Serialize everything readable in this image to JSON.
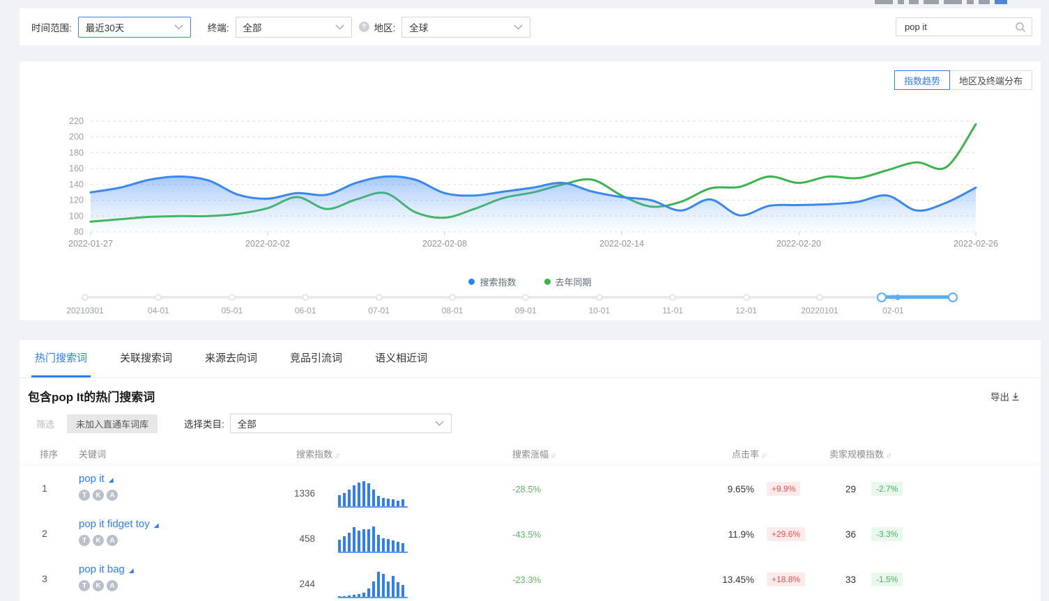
{
  "colors": {
    "accent_blue": "#2d7cf7",
    "chart_blue": "#3a87f0",
    "chart_green": "#3ab54a",
    "slider_blue": "#57aef8",
    "up_red": "#f0504e",
    "down_green": "#4bb25c"
  },
  "icons": {
    "sort_icon": "↓↑",
    "help_icon": "?",
    "expand_icon": "◢"
  },
  "filters": {
    "time_label": "时间范围:",
    "time_value": "最近30天",
    "terminal_label": "终端:",
    "terminal_value": "全部",
    "region_label": "地区:",
    "region_value": "全球",
    "search_value": "pop it"
  },
  "chart_card": {
    "toggle_trend": "指数趋势",
    "toggle_distribution": "地区及终端分布",
    "legend": [
      {
        "label": "搜索指数",
        "color": "#2188f2"
      },
      {
        "label": "去年同期",
        "color": "#37b34a"
      }
    ],
    "timeline": {
      "labels": [
        "20210301",
        "04-01",
        "05-01",
        "06-01",
        "07-01",
        "08-01",
        "09-01",
        "10-01",
        "11-01",
        "12-01",
        "20220101",
        "02-01"
      ],
      "selected_start_label": "02-01"
    }
  },
  "chart_data": {
    "type": "area",
    "x": [
      "2022-01-27",
      "2022-01-28",
      "2022-01-29",
      "2022-01-30",
      "2022-01-31",
      "2022-02-01",
      "2022-02-02",
      "2022-02-03",
      "2022-02-04",
      "2022-02-05",
      "2022-02-06",
      "2022-02-07",
      "2022-02-08",
      "2022-02-09",
      "2022-02-10",
      "2022-02-11",
      "2022-02-12",
      "2022-02-13",
      "2022-02-14",
      "2022-02-15",
      "2022-02-16",
      "2022-02-17",
      "2022-02-18",
      "2022-02-19",
      "2022-02-20",
      "2022-02-21",
      "2022-02-22",
      "2022-02-23",
      "2022-02-24",
      "2022-02-25",
      "2022-02-26"
    ],
    "series": [
      {
        "name": "搜索指数",
        "color": "#3a87f0",
        "fill": true,
        "values": [
          130,
          136,
          146,
          150,
          145,
          127,
          122,
          129,
          127,
          142,
          150,
          146,
          129,
          126,
          131,
          136,
          142,
          131,
          124,
          120,
          107,
          121,
          101,
          113,
          114,
          115,
          118,
          126,
          107,
          117,
          136
        ]
      },
      {
        "name": "去年同期",
        "color": "#3ab54a",
        "fill": false,
        "values": [
          93,
          96,
          99,
          100,
          100,
          103,
          110,
          124,
          109,
          121,
          129,
          105,
          98,
          109,
          123,
          130,
          140,
          146,
          126,
          112,
          118,
          135,
          137,
          150,
          142,
          150,
          148,
          158,
          168,
          162,
          216
        ]
      }
    ],
    "ylim": [
      80,
      220
    ],
    "yticks": [
      80,
      100,
      120,
      140,
      160,
      180,
      200,
      220
    ],
    "xtick_indices": [
      0,
      6,
      12,
      18,
      24,
      30
    ],
    "xtick_labels": [
      "2022-01-27",
      "2022-02-02",
      "2022-02-08",
      "2022-02-14",
      "2022-02-20",
      "2022-02-26"
    ],
    "grid": true,
    "legend_position": "bottom"
  },
  "tabs": [
    {
      "label": "热门搜索词",
      "active": true
    },
    {
      "label": "关联搜索词",
      "active": false
    },
    {
      "label": "来源去向词",
      "active": false
    },
    {
      "label": "竞品引流词",
      "active": false
    },
    {
      "label": "语义相近词",
      "active": false
    }
  ],
  "section": {
    "title": "包含pop It的热门搜索词",
    "export_label": "导出",
    "filter_label": "筛选",
    "filter_button": "未加入直通车词库",
    "category_label": "选择类目:",
    "category_value": "全部"
  },
  "table": {
    "headers": [
      "排序",
      "关键词",
      "搜索指数",
      "搜索涨幅",
      "点击率",
      "卖家规模指数"
    ],
    "rows": [
      {
        "rank": "1",
        "keyword": "pop it",
        "badges": [
          "T",
          "K",
          "A"
        ],
        "index": "1336",
        "spark": [
          45,
          52,
          66,
          82,
          94,
          100,
          92,
          68,
          42,
          34,
          30,
          28,
          22,
          28
        ],
        "change": "-28.5%",
        "ctr": "9.65%",
        "ctr_change": "+9.9%",
        "seller_index": "29",
        "seller_change": "-2.7%"
      },
      {
        "rank": "2",
        "keyword": "pop it fidget toy",
        "badges": [
          "T",
          "K",
          "A"
        ],
        "index": "458",
        "spark": [
          46,
          60,
          76,
          96,
          84,
          90,
          90,
          100,
          66,
          54,
          50,
          44,
          40,
          32
        ],
        "change": "-43.5%",
        "ctr": "11.9%",
        "ctr_change": "+29.6%",
        "seller_index": "36",
        "seller_change": "-3.3%"
      },
      {
        "rank": "3",
        "keyword": "pop it bag",
        "badges": [
          "T",
          "K",
          "A"
        ],
        "index": "244",
        "spark": [
          2,
          3,
          5,
          7,
          10,
          18,
          34,
          60,
          100,
          92,
          62,
          84,
          58,
          46
        ],
        "change": "-23.3%",
        "ctr": "13.45%",
        "ctr_change": "+18.8%",
        "seller_index": "33",
        "seller_change": "-1.5%"
      }
    ]
  }
}
